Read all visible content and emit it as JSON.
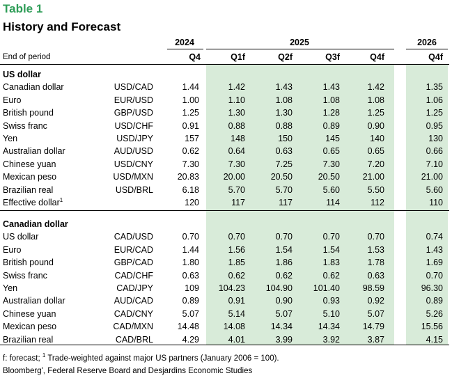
{
  "title": "Table 1",
  "subtitle": "History and Forecast",
  "years": [
    "2024",
    "2025",
    "2026"
  ],
  "header_label": "End of period",
  "quarters": [
    "Q4",
    "Q1f",
    "Q2f",
    "Q3f",
    "Q4f",
    "Q4f"
  ],
  "sections": [
    {
      "heading": "US dollar",
      "rows": [
        {
          "name": "Canadian dollar",
          "pair": "USD/CAD",
          "values": [
            "1.44",
            "1.42",
            "1.43",
            "1.43",
            "1.42",
            "1.35"
          ]
        },
        {
          "name": "Euro",
          "pair": "EUR/USD",
          "values": [
            "1.00",
            "1.10",
            "1.08",
            "1.08",
            "1.08",
            "1.06"
          ]
        },
        {
          "name": "British pound",
          "pair": "GBP/USD",
          "values": [
            "1.25",
            "1.30",
            "1.30",
            "1.28",
            "1.25",
            "1.25"
          ]
        },
        {
          "name": "Swiss franc",
          "pair": "USD/CHF",
          "values": [
            "0.91",
            "0.88",
            "0.88",
            "0.89",
            "0.90",
            "0.95"
          ]
        },
        {
          "name": "Yen",
          "pair": "USD/JPY",
          "values": [
            "157",
            "148",
            "150",
            "145",
            "140",
            "130"
          ]
        },
        {
          "name": "Australian dollar",
          "pair": "AUD/USD",
          "values": [
            "0.62",
            "0.64",
            "0.63",
            "0.65",
            "0.65",
            "0.66"
          ]
        },
        {
          "name": "Chinese yuan",
          "pair": "USD/CNY",
          "values": [
            "7.30",
            "7.30",
            "7.25",
            "7.30",
            "7.20",
            "7.10"
          ]
        },
        {
          "name": "Mexican peso",
          "pair": "USD/MXN",
          "values": [
            "20.83",
            "20.00",
            "20.50",
            "20.50",
            "21.00",
            "21.00"
          ]
        },
        {
          "name": "Brazilian real",
          "pair": "USD/BRL",
          "values": [
            "6.18",
            "5.70",
            "5.70",
            "5.60",
            "5.50",
            "5.60"
          ]
        },
        {
          "name": "Effective dollar",
          "sup": "1",
          "pair": "",
          "values": [
            "120",
            "117",
            "117",
            "114",
            "112",
            "110"
          ]
        }
      ]
    },
    {
      "heading": "Canadian dollar",
      "rows": [
        {
          "name": "US dollar",
          "pair": "CAD/USD",
          "values": [
            "0.70",
            "0.70",
            "0.70",
            "0.70",
            "0.70",
            "0.74"
          ]
        },
        {
          "name": "Euro",
          "pair": "EUR/CAD",
          "values": [
            "1.44",
            "1.56",
            "1.54",
            "1.54",
            "1.53",
            "1.43"
          ]
        },
        {
          "name": "British pound",
          "pair": "GBP/CAD",
          "values": [
            "1.80",
            "1.85",
            "1.86",
            "1.83",
            "1.78",
            "1.69"
          ]
        },
        {
          "name": "Swiss franc",
          "pair": "CAD/CHF",
          "values": [
            "0.63",
            "0.62",
            "0.62",
            "0.62",
            "0.63",
            "0.70"
          ]
        },
        {
          "name": "Yen",
          "pair": "CAD/JPY",
          "values": [
            "109",
            "104.23",
            "104.90",
            "101.40",
            "98.59",
            "96.30"
          ]
        },
        {
          "name": "Australian dollar",
          "pair": "AUD/CAD",
          "values": [
            "0.89",
            "0.91",
            "0.90",
            "0.93",
            "0.92",
            "0.89"
          ]
        },
        {
          "name": "Chinese yuan",
          "pair": "CAD/CNY",
          "values": [
            "5.07",
            "5.14",
            "5.07",
            "5.10",
            "5.07",
            "5.26"
          ]
        },
        {
          "name": "Mexican peso",
          "pair": "CAD/MXN",
          "values": [
            "14.48",
            "14.08",
            "14.34",
            "14.34",
            "14.79",
            "15.56"
          ]
        },
        {
          "name": "Brazilian real",
          "pair": "CAD/BRL",
          "values": [
            "4.29",
            "4.01",
            "3.99",
            "3.92",
            "3.87",
            "4.15"
          ]
        }
      ]
    }
  ],
  "footnote": {
    "prefix": "f: forecast; ",
    "sup": "1",
    "text": " Trade-weighted against major US partners (January 2006 = 100).",
    "source": "Bloomberg', Federal Reserve Board and Desjardins Economic Studies"
  },
  "colors": {
    "title": "#2e9d57",
    "shade": "#d8ebd9"
  }
}
